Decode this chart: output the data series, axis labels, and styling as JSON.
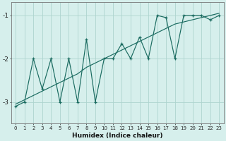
{
  "xlabel": "Humidex (Indice chaleur)",
  "bg_color": "#d6efec",
  "grid_color": "#aed4cf",
  "line_color": "#1a6b60",
  "x_values": [
    0,
    1,
    2,
    3,
    4,
    5,
    6,
    7,
    8,
    9,
    10,
    11,
    12,
    13,
    14,
    15,
    16,
    17,
    18,
    19,
    20,
    21,
    22,
    23
  ],
  "y_jagged": [
    -3.1,
    -3.0,
    -2.0,
    -2.7,
    -2.0,
    -3.0,
    -2.0,
    -3.0,
    -1.55,
    -3.0,
    -2.0,
    -2.0,
    -1.65,
    -2.0,
    -1.5,
    -2.0,
    -1.0,
    -1.05,
    -2.0,
    -1.0,
    -1.0,
    -1.0,
    -1.1,
    -1.0
  ],
  "y_smooth": [
    -3.05,
    -2.95,
    -2.85,
    -2.75,
    -2.65,
    -2.55,
    -2.45,
    -2.35,
    -2.2,
    -2.1,
    -2.0,
    -1.9,
    -1.8,
    -1.7,
    -1.6,
    -1.5,
    -1.4,
    -1.3,
    -1.2,
    -1.15,
    -1.1,
    -1.05,
    -1.0,
    -0.95
  ],
  "ylim": [
    -3.5,
    -0.7
  ],
  "xlim": [
    -0.5,
    23.5
  ],
  "yticks": [
    -3,
    -2,
    -1
  ],
  "xticks": [
    0,
    1,
    2,
    3,
    4,
    5,
    6,
    7,
    8,
    9,
    10,
    11,
    12,
    13,
    14,
    15,
    16,
    17,
    18,
    19,
    20,
    21,
    22,
    23
  ],
  "xlabel_fontsize": 6.5,
  "ytick_fontsize": 6.5,
  "xtick_fontsize": 5.0
}
